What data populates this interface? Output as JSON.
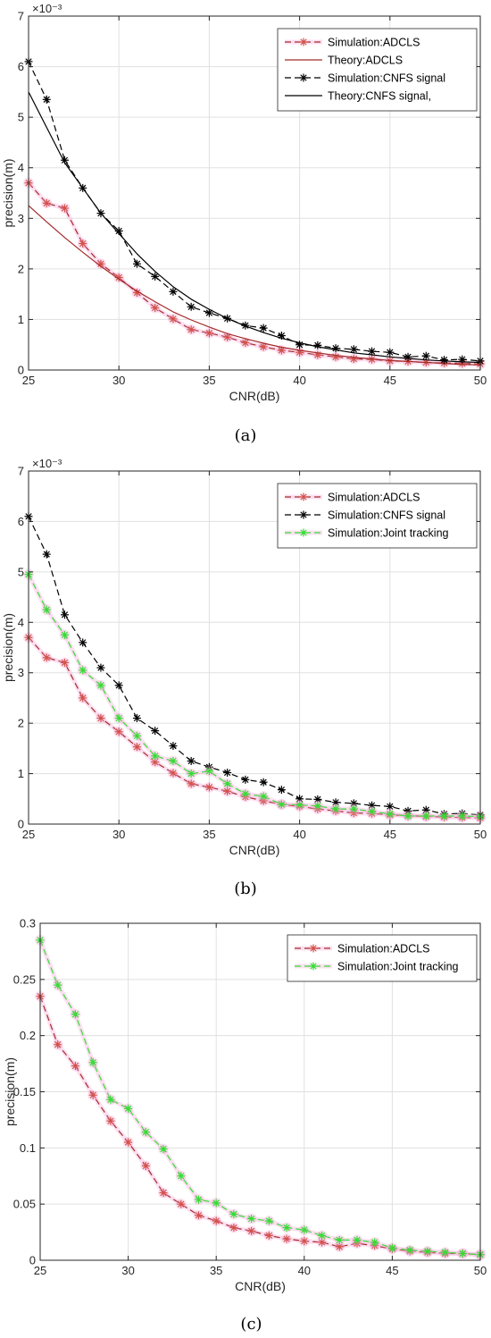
{
  "colors": {
    "adcls": "#A52A2A",
    "adcls_marker": "#D2524A",
    "cnfs": "#000000",
    "joint": "#33DD33",
    "grid": "#E0E0E0",
    "pink_shadow": "#F7A6D8"
  },
  "chart_data": [
    {
      "type": "line",
      "caption": "(a)",
      "xlabel": "CNR(dB)",
      "ylabel": "precision(m)",
      "xlim": [
        25,
        50
      ],
      "ylim": [
        0,
        0.007
      ],
      "y_exponent_label": "×10⁻³",
      "y_ticks": [
        0,
        0.001,
        0.002,
        0.003,
        0.004,
        0.005,
        0.006,
        0.007
      ],
      "y_tick_labels": [
        "0",
        "1",
        "2",
        "3",
        "4",
        "5",
        "6",
        "7"
      ],
      "x_ticks": [
        25,
        30,
        35,
        40,
        45,
        50
      ],
      "x_tick_labels": [
        "25",
        "30",
        "35",
        "40",
        "45",
        "50"
      ],
      "grid": true,
      "legend_position": "top-right",
      "x": [
        25,
        26,
        27,
        28,
        29,
        30,
        31,
        32,
        33,
        34,
        35,
        36,
        37,
        38,
        39,
        40,
        41,
        42,
        43,
        44,
        45,
        46,
        47,
        48,
        49,
        50
      ],
      "series": [
        {
          "name": "Simulation:ADCLS",
          "style": "dashed",
          "marker": true,
          "color": "adcls",
          "values": [
            0.0037,
            0.0033,
            0.0032,
            0.0025,
            0.0021,
            0.00183,
            0.00153,
            0.00123,
            0.00101,
            0.0008,
            0.00073,
            0.00065,
            0.00054,
            0.00046,
            0.00039,
            0.00035,
            0.0003,
            0.00026,
            0.00022,
            0.00021,
            0.00018,
            0.00017,
            0.00015,
            0.00014,
            0.00013,
            0.00012
          ]
        },
        {
          "name": "Theory:ADCLS",
          "style": "solid",
          "marker": false,
          "color": "adcls",
          "values": [
            0.00325,
            0.00293,
            0.00262,
            0.00233,
            0.00205,
            0.0018,
            0.00156,
            0.00135,
            0.00115,
            0.00099,
            0.00085,
            0.00072,
            0.00062,
            0.00053,
            0.00045,
            0.00039,
            0.00034,
            0.00029,
            0.00025,
            0.00022,
            0.00019,
            0.00017,
            0.00015,
            0.00013,
            0.00011,
            0.0001
          ]
        },
        {
          "name": "Simulation:CNFS signal",
          "style": "dashed",
          "marker": true,
          "color": "cnfs",
          "values": [
            0.0061,
            0.00535,
            0.00415,
            0.0036,
            0.0031,
            0.00275,
            0.0021,
            0.00185,
            0.00155,
            0.00125,
            0.00113,
            0.00102,
            0.00088,
            0.00083,
            0.00068,
            0.0005,
            0.00049,
            0.00043,
            0.00041,
            0.00037,
            0.00035,
            0.00026,
            0.00028,
            0.0002,
            0.00021,
            0.00018
          ]
        },
        {
          "name": "Theory:CNFS signal,",
          "style": "solid",
          "marker": false,
          "color": "cnfs",
          "values": [
            0.0055,
            0.0048,
            0.0041,
            0.0036,
            0.0031,
            0.0027,
            0.0023,
            0.00195,
            0.00165,
            0.0014,
            0.0012,
            0.00102,
            0.00087,
            0.00074,
            0.00063,
            0.00054,
            0.00046,
            0.0004,
            0.00034,
            0.0003,
            0.00026,
            0.00023,
            0.0002,
            0.00018,
            0.00016,
            0.00015
          ]
        }
      ]
    },
    {
      "type": "line",
      "caption": "(b)",
      "xlabel": "CNR(dB)",
      "ylabel": "precision(m)",
      "xlim": [
        25,
        50
      ],
      "ylim": [
        0,
        0.007
      ],
      "y_exponent_label": "×10⁻³",
      "y_ticks": [
        0,
        0.001,
        0.002,
        0.003,
        0.004,
        0.005,
        0.006,
        0.007
      ],
      "y_tick_labels": [
        "0",
        "1",
        "2",
        "3",
        "4",
        "5",
        "6",
        "7"
      ],
      "x_ticks": [
        25,
        30,
        35,
        40,
        45,
        50
      ],
      "x_tick_labels": [
        "25",
        "30",
        "35",
        "40",
        "45",
        "50"
      ],
      "grid": true,
      "legend_position": "top-right",
      "x": [
        25,
        26,
        27,
        28,
        29,
        30,
        31,
        32,
        33,
        34,
        35,
        36,
        37,
        38,
        39,
        40,
        41,
        42,
        43,
        44,
        45,
        46,
        47,
        48,
        49,
        50
      ],
      "series": [
        {
          "name": "Simulation:ADCLS",
          "style": "dashed",
          "marker": true,
          "color": "adcls",
          "values": [
            0.0037,
            0.0033,
            0.0032,
            0.0025,
            0.0021,
            0.00183,
            0.00153,
            0.00123,
            0.00101,
            0.0008,
            0.00073,
            0.00065,
            0.00054,
            0.00046,
            0.00039,
            0.00035,
            0.0003,
            0.00026,
            0.00022,
            0.00021,
            0.00018,
            0.00017,
            0.00015,
            0.00014,
            0.00013,
            0.00012
          ]
        },
        {
          "name": "Simulation:CNFS signal",
          "style": "dashed",
          "marker": true,
          "color": "cnfs",
          "values": [
            0.0061,
            0.00535,
            0.00415,
            0.0036,
            0.0031,
            0.00275,
            0.0021,
            0.00185,
            0.00155,
            0.00125,
            0.00113,
            0.00102,
            0.00088,
            0.00083,
            0.00068,
            0.0005,
            0.00049,
            0.00043,
            0.00041,
            0.00037,
            0.00035,
            0.00026,
            0.00028,
            0.0002,
            0.00021,
            0.00018
          ]
        },
        {
          "name": "Simulation:Joint tracking",
          "style": "dashed",
          "marker": true,
          "color": "joint",
          "values": [
            0.00495,
            0.00425,
            0.00375,
            0.00305,
            0.00275,
            0.0021,
            0.00175,
            0.00135,
            0.00125,
            0.001,
            0.00105,
            0.0008,
            0.0006,
            0.00055,
            0.00039,
            0.00038,
            0.00036,
            0.0003,
            0.0003,
            0.00025,
            0.0002,
            0.00016,
            0.00016,
            0.00016,
            0.00016,
            0.00015
          ]
        }
      ]
    },
    {
      "type": "line",
      "caption": "(c)",
      "xlabel": "CNR(dB)",
      "ylabel": "precision(m)",
      "xlim": [
        25,
        50
      ],
      "ylim": [
        0,
        0.3
      ],
      "y_exponent_label": "",
      "y_ticks": [
        0,
        0.05,
        0.1,
        0.15,
        0.2,
        0.25,
        0.3
      ],
      "y_tick_labels": [
        "0",
        "0.05",
        "0.1",
        "0.15",
        "0.2",
        "0.25",
        "0.3"
      ],
      "x_ticks": [
        25,
        30,
        35,
        40,
        45,
        50
      ],
      "x_tick_labels": [
        "25",
        "30",
        "35",
        "40",
        "45",
        "50"
      ],
      "grid": true,
      "legend_position": "top-right",
      "x": [
        25,
        26,
        27,
        28,
        29,
        30,
        31,
        32,
        33,
        34,
        35,
        36,
        37,
        38,
        39,
        40,
        41,
        42,
        43,
        44,
        45,
        46,
        47,
        48,
        49,
        50
      ],
      "series": [
        {
          "name": "Simulation:ADCLS",
          "style": "dashed",
          "marker": true,
          "color": "adcls",
          "values": [
            0.235,
            0.192,
            0.173,
            0.147,
            0.124,
            0.105,
            0.084,
            0.06,
            0.05,
            0.04,
            0.035,
            0.029,
            0.026,
            0.022,
            0.019,
            0.017,
            0.016,
            0.012,
            0.015,
            0.013,
            0.01,
            0.008,
            0.007,
            0.006,
            0.006,
            0.005
          ]
        },
        {
          "name": "Simulation:Joint tracking",
          "style": "dashed",
          "marker": true,
          "color": "joint",
          "values": [
            0.285,
            0.245,
            0.219,
            0.176,
            0.143,
            0.135,
            0.114,
            0.099,
            0.075,
            0.054,
            0.051,
            0.041,
            0.037,
            0.035,
            0.029,
            0.027,
            0.022,
            0.018,
            0.018,
            0.016,
            0.011,
            0.009,
            0.008,
            0.007,
            0.006,
            0.005
          ]
        }
      ]
    }
  ]
}
